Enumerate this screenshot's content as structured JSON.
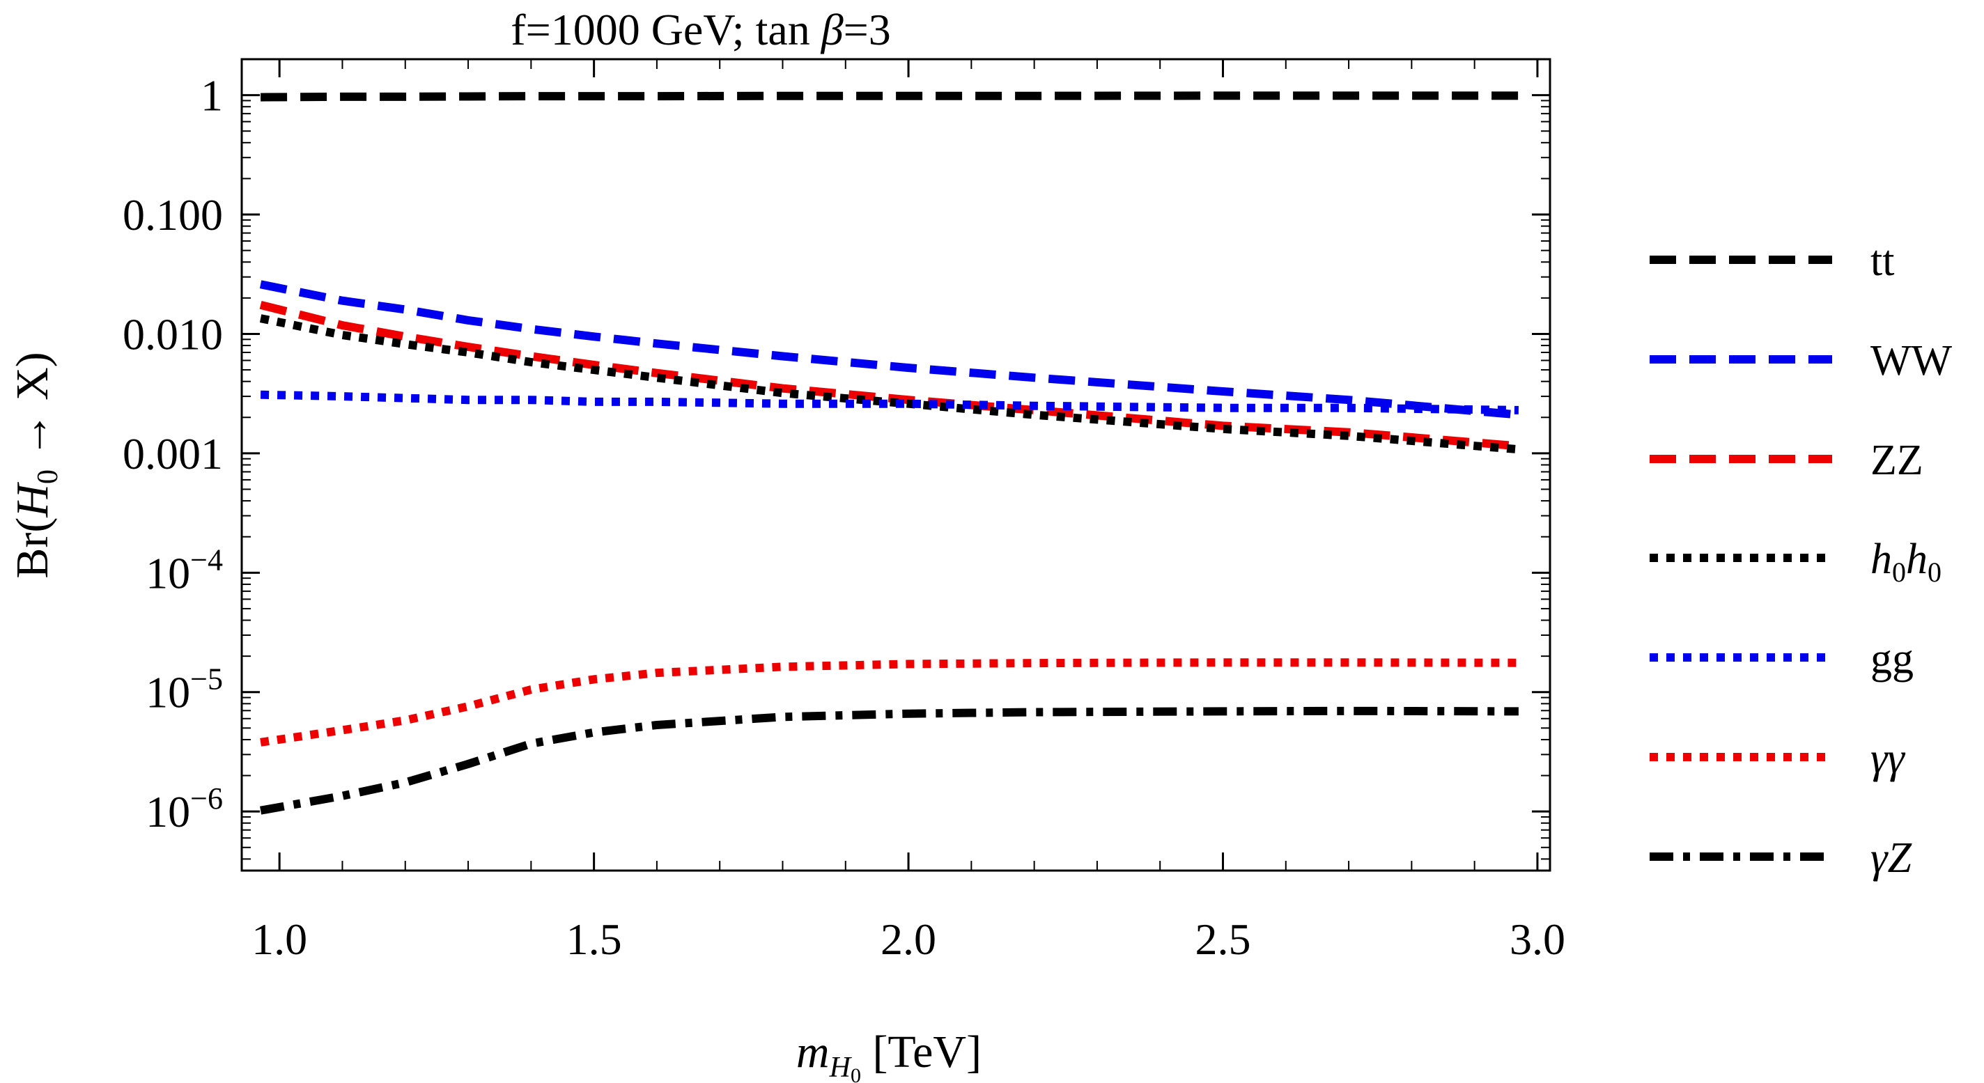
{
  "chart_data": {
    "type": "line",
    "title": "f=1000 GeV; tan β=3",
    "title_parts": {
      "pre": "f=1000 GeV; tan ",
      "beta": "β",
      "post": "=3"
    },
    "xlabel": "m_{H0} [TeV]",
    "xlabel_parts": {
      "m": "m",
      "sub1": "H",
      "sub2": "0",
      "unit": " [TeV]"
    },
    "ylabel": "Br(H0 → X)",
    "ylabel_parts": {
      "pre": "Br(",
      "H": "H",
      "sub": "0",
      "post": " → X)"
    },
    "xlim": [
      0.94,
      3.02
    ],
    "ylim": [
      3.2e-07,
      2.0
    ],
    "yscale": "log",
    "grid": false,
    "legend_position": "right",
    "x_ticks": [
      {
        "value": 1.0,
        "label": "1.0"
      },
      {
        "value": 1.5,
        "label": "1.5"
      },
      {
        "value": 2.0,
        "label": "2.0"
      },
      {
        "value": 2.5,
        "label": "2.5"
      },
      {
        "value": 3.0,
        "label": "3.0"
      }
    ],
    "y_ticks": [
      {
        "value": 1,
        "label": "1",
        "exp": ""
      },
      {
        "value": 0.1,
        "label": "0.100",
        "exp": ""
      },
      {
        "value": 0.01,
        "label": "0.010",
        "exp": ""
      },
      {
        "value": 0.001,
        "label": "0.001",
        "exp": ""
      },
      {
        "value": 0.0001,
        "label": "10",
        "exp": "−4"
      },
      {
        "value": 1e-05,
        "label": "10",
        "exp": "−5"
      },
      {
        "value": 1e-06,
        "label": "10",
        "exp": "−6"
      }
    ],
    "x": [
      0.97,
      1.1,
      1.2,
      1.3,
      1.4,
      1.5,
      1.6,
      1.8,
      2.0,
      2.2,
      2.5,
      2.7,
      2.97
    ],
    "series": [
      {
        "name": "tt",
        "color": "#000000",
        "dash": "long",
        "values": [
          0.96,
          0.97,
          0.97,
          0.975,
          0.98,
          0.98,
          0.98,
          0.985,
          0.985,
          0.985,
          0.99,
          0.99,
          0.99
        ]
      },
      {
        "name": "WW",
        "color": "#0000ee",
        "dash": "long",
        "values": [
          0.026,
          0.019,
          0.016,
          0.013,
          0.011,
          0.0095,
          0.0083,
          0.0065,
          0.0052,
          0.0043,
          0.0033,
          0.0028,
          0.0021
        ]
      },
      {
        "name": "ZZ",
        "color": "#ee0000",
        "dash": "long",
        "values": [
          0.0175,
          0.0118,
          0.0095,
          0.0078,
          0.0065,
          0.0055,
          0.0047,
          0.0035,
          0.0028,
          0.0023,
          0.0017,
          0.0015,
          0.00115
        ]
      },
      {
        "name": "h0h0",
        "name_parts": {
          "a": "h",
          "s1": "0",
          "b": "h",
          "s2": "0"
        },
        "color": "#000000",
        "dash": "dot",
        "values": [
          0.0135,
          0.0098,
          0.0082,
          0.007,
          0.0058,
          0.005,
          0.0043,
          0.0032,
          0.0026,
          0.0021,
          0.0016,
          0.0014,
          0.00108
        ]
      },
      {
        "name": "gg",
        "color": "#0000ee",
        "dash": "dot",
        "values": [
          0.0031,
          0.003,
          0.0029,
          0.0028,
          0.0028,
          0.0027,
          0.0027,
          0.0026,
          0.0026,
          0.0025,
          0.0024,
          0.0024,
          0.0023
        ]
      },
      {
        "name": "γγ",
        "color": "#ee0000",
        "dash": "dot",
        "values": [
          3.8e-06,
          4.8e-06,
          5.8e-06,
          7.6e-06,
          1.05e-05,
          1.28e-05,
          1.45e-05,
          1.63e-05,
          1.72e-05,
          1.75e-05,
          1.77e-05,
          1.77e-05,
          1.76e-05
        ]
      },
      {
        "name": "γZ",
        "name_parts": {
          "a": "γ",
          "b": "Z"
        },
        "color": "#000000",
        "dash": "dashdot",
        "values": [
          1.02e-06,
          1.35e-06,
          1.75e-06,
          2.5e-06,
          3.7e-06,
          4.6e-06,
          5.3e-06,
          6.2e-06,
          6.6e-06,
          6.8e-06,
          6.9e-06,
          6.95e-06,
          6.9e-06
        ]
      }
    ]
  }
}
